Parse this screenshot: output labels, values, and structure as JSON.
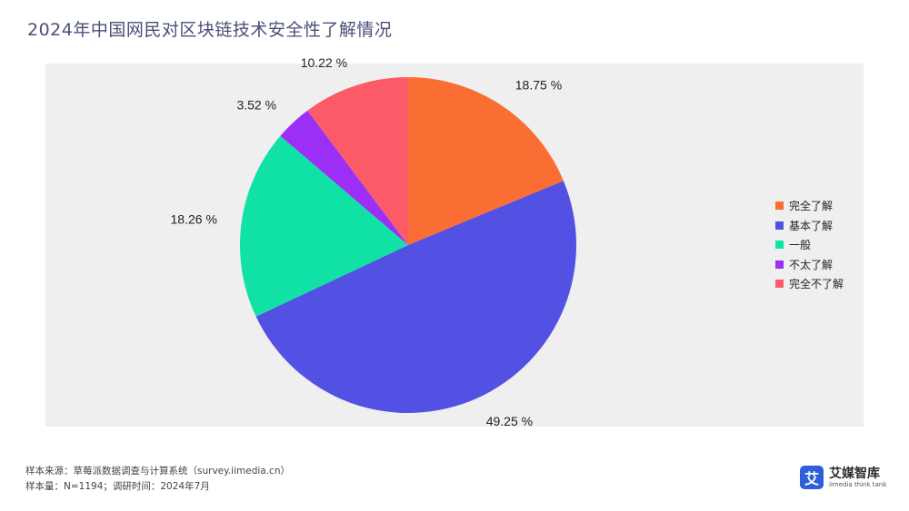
{
  "title": "2024年中国网民对区块链技术安全性了解情况",
  "chart_data": {
    "type": "pie",
    "title": "2024年中国网民对区块链技术安全性了解情况",
    "categories": [
      "完全了解",
      "基本了解",
      "一般",
      "不太了解",
      "完全不了解"
    ],
    "values": [
      18.75,
      49.25,
      18.26,
      3.52,
      10.22
    ],
    "labels": [
      "18.75 %",
      "49.25 %",
      "18.26 %",
      "3.52 %",
      "10.22 %"
    ],
    "colors": [
      "#fa6e34",
      "#5351e4",
      "#10e2a6",
      "#9b2ff6",
      "#fb5b66"
    ],
    "legend_position": "right",
    "start_angle": "top",
    "direction": "clockwise"
  },
  "footer": {
    "source": "样本来源：草莓派数据调查与计算系统（survey.iimedia.cn）",
    "sample": "样本量：N=1194；调研时间：2024年7月"
  },
  "logo": {
    "mark": "艾",
    "name": "艾媒智库",
    "tagline": "iimedia think tank"
  }
}
